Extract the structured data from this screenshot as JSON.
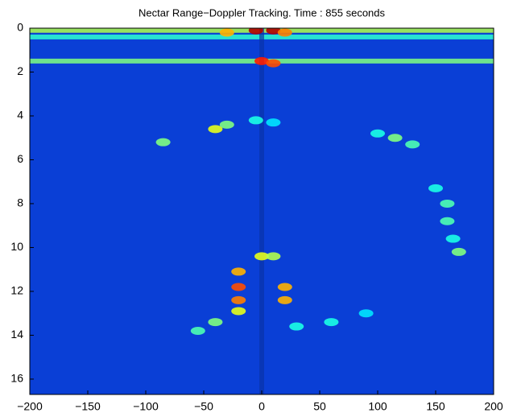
{
  "chart_data": {
    "type": "heatmap",
    "title": "Nectar Range−Doppler Tracking. Time : 855 seconds",
    "xlim": [
      -200,
      200
    ],
    "ylim": [
      0,
      16.7
    ],
    "y_reversed": true,
    "clim": [
      0,
      1
    ],
    "colormap": "jet",
    "xticks": [
      {
        "value": -200,
        "label": "−200"
      },
      {
        "value": -150,
        "label": "−150"
      },
      {
        "value": -100,
        "label": "−100"
      },
      {
        "value": -50,
        "label": "−50"
      },
      0,
      50,
      100,
      150,
      200
    ],
    "yticks": [
      0,
      2,
      4,
      6,
      8,
      10,
      12,
      14,
      16
    ],
    "bands": {
      "y": [
        0.1,
        0.4,
        1.5
      ],
      "values": [
        0.55,
        0.42,
        0.5
      ]
    },
    "x": [
      -5,
      10,
      -30,
      20,
      0,
      10,
      -40,
      -30,
      -85,
      -5,
      10,
      100,
      115,
      130,
      150,
      160,
      160,
      165,
      170,
      0,
      10,
      -20,
      -20,
      -20,
      -20,
      20,
      20,
      -40,
      -55,
      30,
      60,
      90
    ],
    "y": [
      0.1,
      0.1,
      0.2,
      0.2,
      1.5,
      1.6,
      4.6,
      4.4,
      5.2,
      4.2,
      4.3,
      4.8,
      5.0,
      5.3,
      7.3,
      8.0,
      8.8,
      9.6,
      10.2,
      10.4,
      10.4,
      11.1,
      11.8,
      12.4,
      12.9,
      11.8,
      12.4,
      13.4,
      13.8,
      13.6,
      13.4,
      13.0
    ],
    "values": [
      0.95,
      0.95,
      0.7,
      0.75,
      0.85,
      0.8,
      0.6,
      0.5,
      0.5,
      0.4,
      0.35,
      0.4,
      0.5,
      0.45,
      0.4,
      0.45,
      0.45,
      0.4,
      0.5,
      0.6,
      0.55,
      0.7,
      0.8,
      0.75,
      0.6,
      0.7,
      0.7,
      0.5,
      0.45,
      0.4,
      0.4,
      0.35
    ]
  }
}
